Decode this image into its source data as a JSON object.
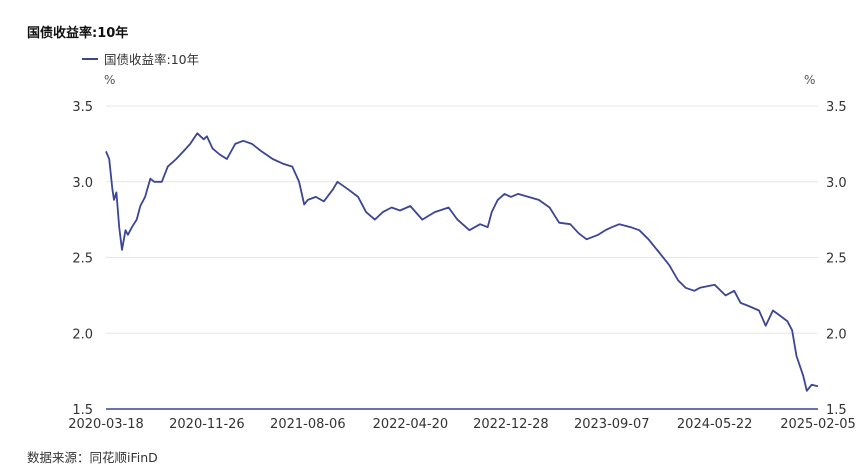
{
  "chart_data": {
    "type": "line",
    "title": "国债收益率:10年",
    "source": "数据来源：同花顺iFinD",
    "y_unit_left": "%",
    "y_unit_right": "%",
    "ylim": [
      1.5,
      3.5
    ],
    "yticks": [
      "3.5",
      "3.0",
      "2.5",
      "2.0",
      "1.5"
    ],
    "xlim": [
      "2020-03-18",
      "2025-02-05"
    ],
    "xticks": [
      "2020-03-18",
      "2020-11-26",
      "2021-08-06",
      "2022-04-20",
      "2022-12-28",
      "2023-09-07",
      "2024-05-22",
      "2025-02-05"
    ],
    "legend_position": "top-left",
    "grid": true,
    "colors": {
      "line": "#3b4593",
      "grid": "#e6e6e6",
      "axis": "#3b4593"
    },
    "series": [
      {
        "name": "国债收益率:10年",
        "x": [
          "2020-03-18",
          "2020-03-26",
          "2020-04-03",
          "2020-04-07",
          "2020-04-13",
          "2020-04-20",
          "2020-04-27",
          "2020-05-06",
          "2020-05-12",
          "2020-05-22",
          "2020-06-03",
          "2020-06-12",
          "2020-06-24",
          "2020-07-07",
          "2020-07-17",
          "2020-08-05",
          "2020-08-20",
          "2020-09-10",
          "2020-09-28",
          "2020-10-15",
          "2020-11-02",
          "2020-11-18",
          "2020-11-26",
          "2020-12-10",
          "2020-12-28",
          "2021-01-15",
          "2021-02-05",
          "2021-02-25",
          "2021-03-19",
          "2021-04-12",
          "2021-05-10",
          "2021-06-04",
          "2021-06-28",
          "2021-07-15",
          "2021-07-28",
          "2021-08-06",
          "2021-08-26",
          "2021-09-15",
          "2021-10-08",
          "2021-10-19",
          "2021-11-15",
          "2021-12-10",
          "2021-12-30",
          "2022-01-21",
          "2022-02-10",
          "2022-03-04",
          "2022-03-25",
          "2022-04-20",
          "2022-05-20",
          "2022-06-20",
          "2022-07-25",
          "2022-08-16",
          "2022-09-15",
          "2022-10-12",
          "2022-10-31",
          "2022-11-10",
          "2022-11-25",
          "2022-12-12",
          "2022-12-28",
          "2023-01-15",
          "2023-02-10",
          "2023-03-08",
          "2023-04-04",
          "2023-04-28",
          "2023-05-26",
          "2023-06-16",
          "2023-07-06",
          "2023-08-04",
          "2023-08-22",
          "2023-09-07",
          "2023-09-26",
          "2023-10-25",
          "2023-11-15",
          "2023-12-08",
          "2024-01-05",
          "2024-01-29",
          "2024-02-20",
          "2024-03-10",
          "2024-04-01",
          "2024-04-15",
          "2024-05-22",
          "2024-06-18",
          "2024-07-10",
          "2024-07-26",
          "2024-08-15",
          "2024-09-10",
          "2024-09-27",
          "2024-10-15",
          "2024-10-31",
          "2024-11-20",
          "2024-12-02",
          "2024-12-13",
          "2024-12-30",
          "2025-01-08",
          "2025-01-20",
          "2025-02-05"
        ],
        "values": [
          3.2,
          3.15,
          2.95,
          2.88,
          2.93,
          2.7,
          2.55,
          2.68,
          2.65,
          2.7,
          2.75,
          2.84,
          2.9,
          3.02,
          3.0,
          3.0,
          3.1,
          3.15,
          3.2,
          3.25,
          3.32,
          3.28,
          3.3,
          3.22,
          3.18,
          3.15,
          3.25,
          3.27,
          3.25,
          3.2,
          3.15,
          3.12,
          3.1,
          3.0,
          2.85,
          2.88,
          2.9,
          2.87,
          2.95,
          3.0,
          2.95,
          2.9,
          2.8,
          2.75,
          2.8,
          2.83,
          2.81,
          2.84,
          2.75,
          2.8,
          2.83,
          2.75,
          2.68,
          2.72,
          2.7,
          2.8,
          2.88,
          2.92,
          2.9,
          2.92,
          2.9,
          2.88,
          2.83,
          2.73,
          2.72,
          2.66,
          2.62,
          2.65,
          2.68,
          2.7,
          2.72,
          2.7,
          2.68,
          2.62,
          2.53,
          2.45,
          2.35,
          2.3,
          2.28,
          2.3,
          2.32,
          2.25,
          2.28,
          2.2,
          2.18,
          2.15,
          2.05,
          2.15,
          2.12,
          2.08,
          2.02,
          1.85,
          1.72,
          1.62,
          1.66,
          1.65
        ]
      }
    ]
  }
}
